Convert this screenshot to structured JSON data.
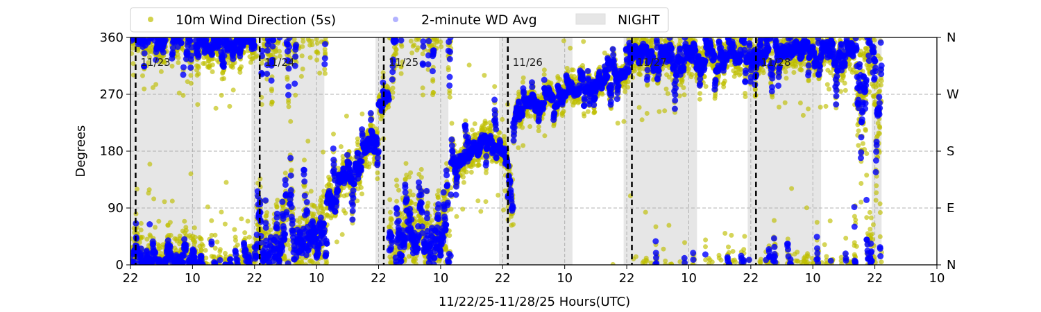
{
  "chart_data": {
    "type": "scatter",
    "title": "",
    "xlabel": "11/22/25-11/28/25  Hours(UTC)",
    "ylabel": "Degrees",
    "x_units": "hours since 11/22 22:00 UTC",
    "xlim": [
      0,
      156
    ],
    "ylim": [
      0,
      360
    ],
    "x_ticks": [
      0,
      12,
      24,
      36,
      48,
      60,
      72,
      84,
      96,
      108,
      120,
      132,
      144,
      156
    ],
    "x_tick_labels": [
      "22",
      "10",
      "22",
      "10",
      "22",
      "10",
      "22",
      "10",
      "22",
      "10",
      "22",
      "10",
      "22",
      "10"
    ],
    "y_ticks": [
      0,
      90,
      180,
      270,
      360
    ],
    "y_tick_labels": [
      "0",
      "90",
      "180",
      "270",
      "360"
    ],
    "y2_tick_labels": [
      "N",
      "E",
      "S",
      "W",
      "N"
    ],
    "grid": true,
    "legend": {
      "placement": "top-left, above plot",
      "entries": [
        "10m Wind Direction (5s)",
        "2-minute WD Avg",
        "NIGHT"
      ]
    },
    "colors": {
      "wind_5s": "#bfbf00",
      "wind_avg": "#0000ff",
      "night": "#e6e6e6"
    },
    "night_periods": [
      [
        0,
        13.6
      ],
      [
        23.4,
        37.5
      ],
      [
        47.4,
        61.5
      ],
      [
        71.3,
        85.5
      ],
      [
        95.4,
        109.6
      ],
      [
        119.4,
        133.6
      ],
      [
        143.4,
        145.3
      ]
    ],
    "day_markers": [
      {
        "hour": 1,
        "label": "11/23"
      },
      {
        "hour": 25,
        "label": "11/24"
      },
      {
        "hour": 49,
        "label": "11/25"
      },
      {
        "hour": 73,
        "label": "11/26"
      },
      {
        "hour": 97,
        "label": "11/27"
      },
      {
        "hour": 121,
        "label": "11/28"
      }
    ],
    "series": [
      {
        "name": "2-minute WD Avg",
        "trend_segments_hour_start_end_deg_start_end_spread": [
          [
            0,
            14,
            8,
            8,
            28
          ],
          [
            14,
            24,
            352,
            352,
            22
          ],
          [
            24,
            38,
            25,
            25,
            45
          ],
          [
            38,
            48,
            100,
            205,
            22
          ],
          [
            48,
            50,
            255,
            255,
            15
          ],
          [
            50,
            62,
            40,
            40,
            45
          ],
          [
            62,
            71,
            150,
            200,
            20
          ],
          [
            71,
            73,
            180,
            160,
            20
          ],
          [
            73,
            74,
            110,
            110,
            30
          ],
          [
            74,
            96,
            245,
            300,
            15
          ],
          [
            96,
            140,
            325,
            335,
            22
          ],
          [
            140,
            145.3,
            310,
            310,
            70
          ]
        ]
      }
    ]
  }
}
